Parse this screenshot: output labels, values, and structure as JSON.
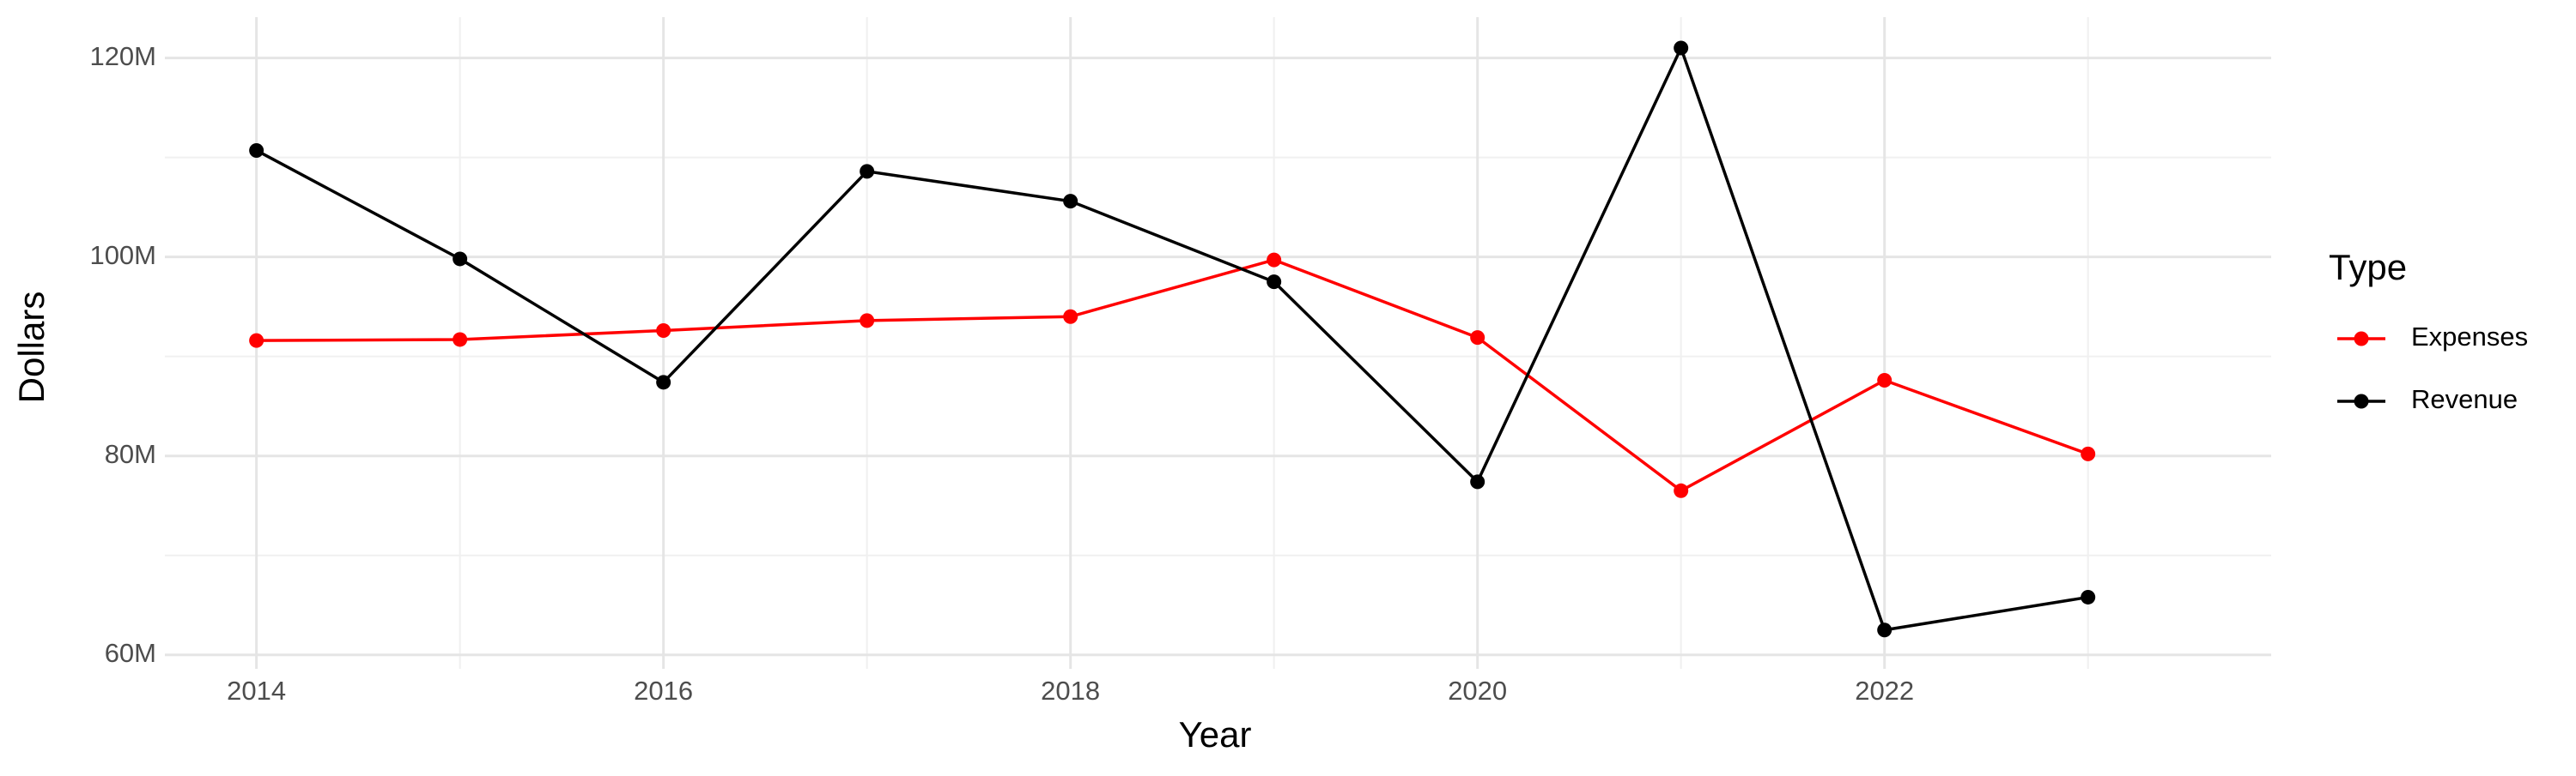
{
  "chart_data": {
    "type": "line",
    "x_label": "Year",
    "y_label": "Dollars",
    "x": [
      2014,
      2015,
      2016,
      2017,
      2018,
      2019,
      2020,
      2021,
      2022,
      2023
    ],
    "series": [
      {
        "name": "Expenses",
        "color": "#ff0000",
        "values": [
          91600000,
          91700000,
          92600000,
          93600000,
          94000000,
          99700000,
          91900000,
          76500000,
          87600000,
          80200000
        ]
      },
      {
        "name": "Revenue",
        "color": "#000000",
        "values": [
          110700000,
          99800000,
          87400000,
          108600000,
          105600000,
          97500000,
          77400000,
          121000000,
          62500000,
          65800000
        ]
      }
    ],
    "xlim": [
      2013.55,
      2023.9
    ],
    "xticks": [
      2014,
      2016,
      2018,
      2020,
      2022
    ],
    "ylim": [
      58600000,
      124100000
    ],
    "yticks": [
      {
        "value": 60000000,
        "label": "60M"
      },
      {
        "value": 80000000,
        "label": "80M"
      },
      {
        "value": 100000000,
        "label": "100M"
      },
      {
        "value": 120000000,
        "label": "120M"
      }
    ],
    "grid": true,
    "legend_title": "Type",
    "legend_position": "right"
  }
}
